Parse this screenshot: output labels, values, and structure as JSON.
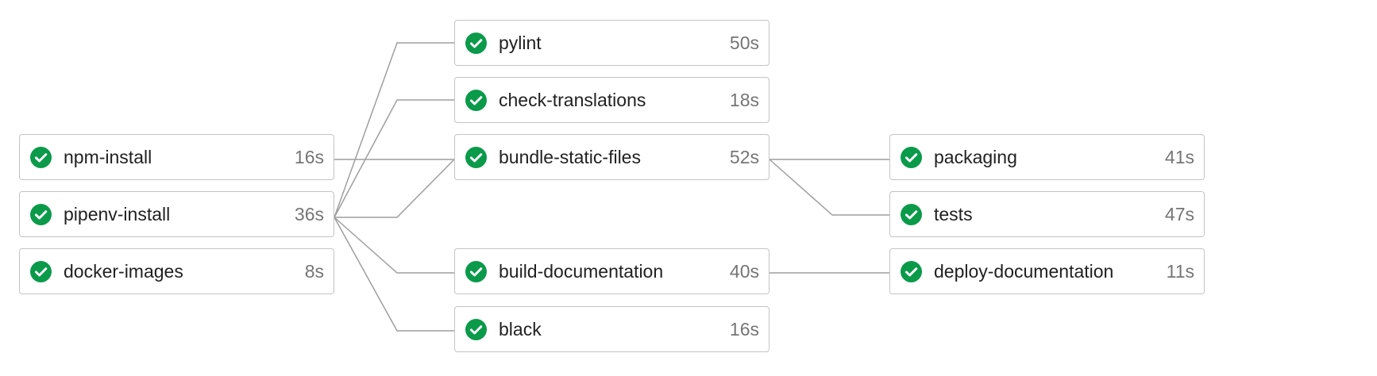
{
  "colors": {
    "success": "#0a9a4a",
    "connector": "#9e9e9e",
    "border": "#c4c4c4",
    "name_text": "#212121",
    "duration_text": "#757575"
  },
  "status_icon": "check-circle-icon",
  "stages": [
    {
      "jobs": [
        {
          "name": "npm-install",
          "duration": "16s",
          "status": "success"
        },
        {
          "name": "pipenv-install",
          "duration": "36s",
          "status": "success"
        },
        {
          "name": "docker-images",
          "duration": "8s",
          "status": "success"
        }
      ]
    },
    {
      "jobs": [
        {
          "name": "pylint",
          "duration": "50s",
          "status": "success"
        },
        {
          "name": "check-translations",
          "duration": "18s",
          "status": "success"
        },
        {
          "name": "bundle-static-files",
          "duration": "52s",
          "status": "success"
        },
        {
          "name": "build-documentation",
          "duration": "40s",
          "status": "success"
        },
        {
          "name": "black",
          "duration": "16s",
          "status": "success"
        }
      ]
    },
    {
      "jobs": [
        {
          "name": "packaging",
          "duration": "41s",
          "status": "success"
        },
        {
          "name": "tests",
          "duration": "47s",
          "status": "success"
        },
        {
          "name": "deploy-documentation",
          "duration": "11s",
          "status": "success"
        }
      ]
    }
  ],
  "dependencies": [
    {
      "from": "npm-install",
      "to": "bundle-static-files"
    },
    {
      "from": "pipenv-install",
      "to": "pylint"
    },
    {
      "from": "pipenv-install",
      "to": "check-translations"
    },
    {
      "from": "pipenv-install",
      "to": "bundle-static-files"
    },
    {
      "from": "pipenv-install",
      "to": "build-documentation"
    },
    {
      "from": "pipenv-install",
      "to": "black"
    },
    {
      "from": "bundle-static-files",
      "to": "packaging"
    },
    {
      "from": "bundle-static-files",
      "to": "tests"
    },
    {
      "from": "build-documentation",
      "to": "deploy-documentation"
    }
  ]
}
